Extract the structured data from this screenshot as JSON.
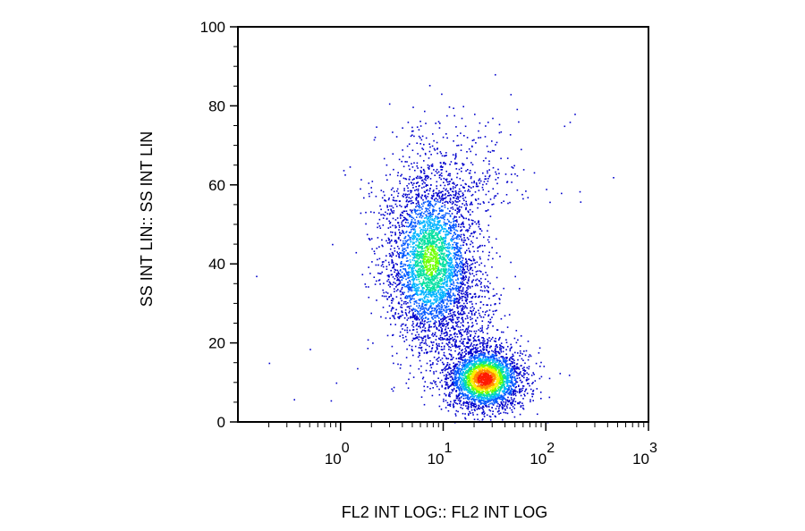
{
  "chart_data": {
    "type": "scatter",
    "title": "",
    "xlabel": "FL2 INT LOG:: FL2 INT LOG",
    "ylabel": "SS INT LIN:: SS INT LIN",
    "x_scale": "log",
    "xlim": [
      0.1,
      1000
    ],
    "ylim": [
      0,
      100
    ],
    "x_ticks": [
      {
        "value": 1,
        "base": "10",
        "exp": "0"
      },
      {
        "value": 10,
        "base": "10",
        "exp": "1"
      },
      {
        "value": 100,
        "base": "10",
        "exp": "2"
      },
      {
        "value": 1000,
        "base": "10",
        "exp": "3"
      }
    ],
    "y_ticks": [
      {
        "value": 0,
        "label": "0"
      },
      {
        "value": 20,
        "label": "20"
      },
      {
        "value": 40,
        "label": "40"
      },
      {
        "value": 60,
        "label": "60"
      },
      {
        "value": 80,
        "label": "80"
      },
      {
        "value": 100,
        "label": "100"
      }
    ],
    "grid": false,
    "colormap": [
      "#0000cc",
      "#0055ff",
      "#00b4ff",
      "#00e0a0",
      "#6eff00",
      "#ffee00",
      "#ff8800",
      "#ff1a00"
    ],
    "populations": [
      {
        "x_center": 7.5,
        "y_center": 41,
        "log_x_spread": 0.18,
        "y_spread": 9,
        "density_peak": 0.55
      },
      {
        "x_center": 25,
        "y_center": 11,
        "log_x_spread": 0.15,
        "y_spread": 3.2,
        "density_peak": 1.0
      }
    ],
    "sparse_points": [
      [
        0.15,
        37
      ],
      [
        0.2,
        15
      ],
      [
        0.5,
        18.5
      ],
      [
        0.35,
        5.8
      ],
      [
        0.8,
        5.5
      ],
      [
        0.9,
        10
      ],
      [
        1.4,
        43
      ],
      [
        3.2,
        8
      ],
      [
        450,
        62
      ],
      [
        190,
        78
      ],
      [
        45,
        83
      ],
      [
        15,
        77
      ],
      [
        20,
        78
      ],
      [
        27,
        76
      ],
      [
        150,
        75
      ],
      [
        30,
        77
      ],
      [
        170,
        76
      ],
      [
        60,
        64
      ],
      [
        140,
        58
      ],
      [
        100,
        59
      ]
    ]
  }
}
